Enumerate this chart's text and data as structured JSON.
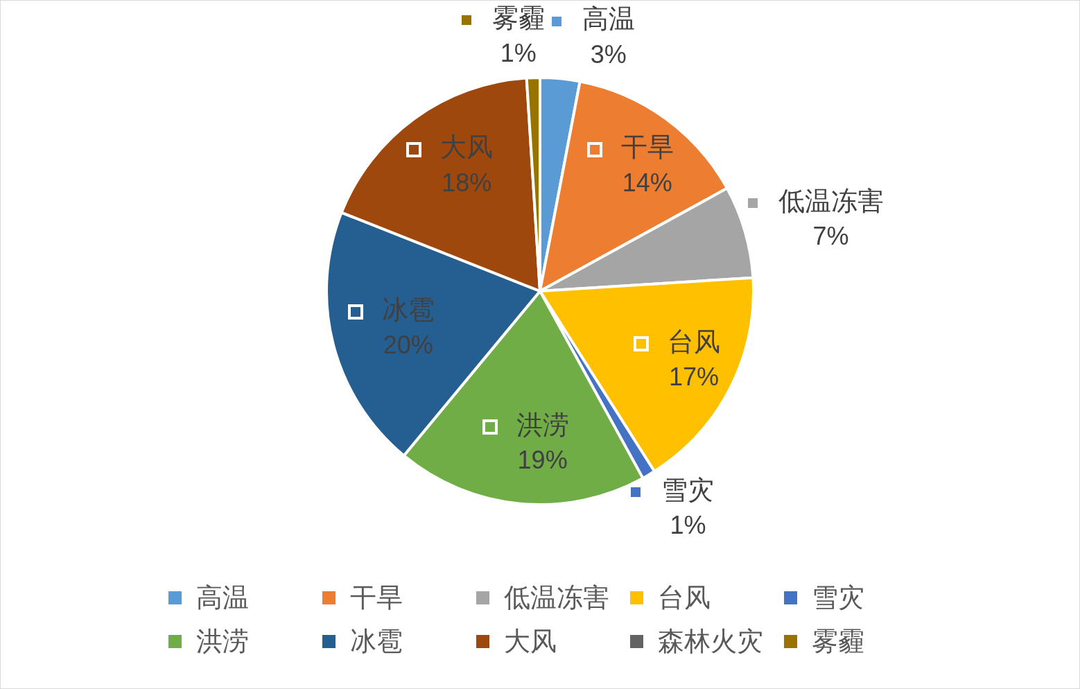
{
  "chart_data": {
    "type": "pie",
    "categories": [
      "高温",
      "干旱",
      "低温冻害",
      "台风",
      "雪灾",
      "洪涝",
      "冰雹",
      "大风",
      "森林火灾",
      "雾霾"
    ],
    "values": [
      3,
      14,
      7,
      17,
      1,
      19,
      20,
      18,
      0,
      1
    ],
    "colors": [
      "#5b9bd5",
      "#ed7d31",
      "#a5a5a5",
      "#ffc000",
      "#4472c4",
      "#70ad47",
      "#255e91",
      "#9e480e",
      "#636363",
      "#997300"
    ],
    "value_labels": [
      "3%",
      "14%",
      "7%",
      "17%",
      "1%",
      "19%",
      "20%",
      "18%",
      null,
      "1%"
    ],
    "legend": "bottom"
  }
}
